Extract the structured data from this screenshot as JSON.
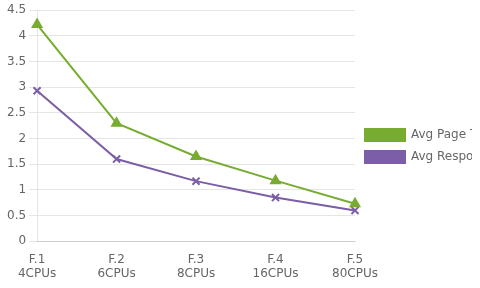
{
  "chart_data": {
    "type": "line",
    "categories": [
      "F.1\n4CPUs",
      "F.2\n6CPUs",
      "F.3\n8CPUs",
      "F.4\n16CPUs",
      "F.5\n80CPUs"
    ],
    "series": [
      {
        "name": "Avg Page Time",
        "color": "#77AC30",
        "marker": "triangle",
        "line_style": "solid",
        "values": [
          4.22,
          2.3,
          1.65,
          1.18,
          0.73
        ]
      },
      {
        "name": "Avg Response Time",
        "color": "#7B5EA7",
        "marker": "x",
        "line_style": "solid",
        "values": [
          2.93,
          1.6,
          1.17,
          0.85,
          0.6
        ]
      }
    ],
    "ylim": [
      0,
      4.5
    ],
    "yticks": [
      0,
      0.5,
      1.0,
      1.5,
      2.0,
      2.5,
      3.0,
      3.5,
      4.0,
      4.5
    ],
    "grid": true,
    "legend": "right"
  }
}
